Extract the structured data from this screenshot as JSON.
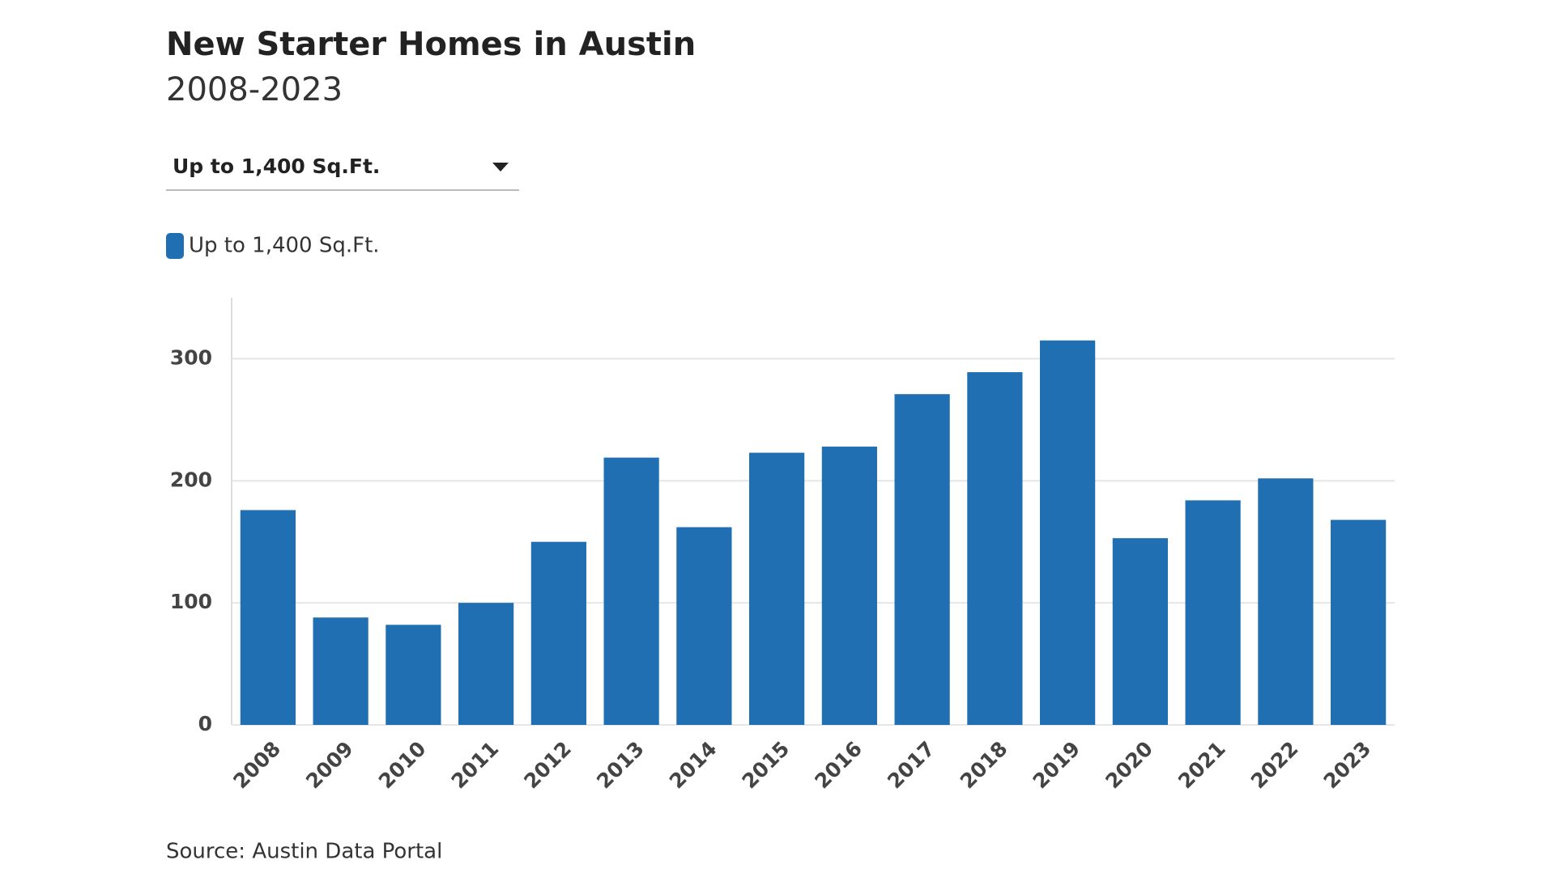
{
  "controls": {
    "dropdown": "Up to 1,400 Sq.Ft."
  },
  "chart_data": {
    "type": "bar",
    "title": "New Starter Homes in Austin",
    "subtitle": "2008-2023",
    "categories": [
      "2008",
      "2009",
      "2010",
      "2011",
      "2012",
      "2013",
      "2014",
      "2015",
      "2016",
      "2017",
      "2018",
      "2019",
      "2020",
      "2021",
      "2022",
      "2023"
    ],
    "series": [
      {
        "name": "Up to 1,400 Sq.Ft.",
        "color": "#1f6fb2",
        "values": [
          176,
          88,
          82,
          100,
          150,
          219,
          162,
          223,
          228,
          271,
          289,
          315,
          153,
          184,
          202,
          168
        ]
      }
    ],
    "ylim": [
      0,
      350
    ],
    "yticks": [
      0,
      100,
      200,
      300
    ],
    "grid": true,
    "source": "Source: Austin Data Portal"
  }
}
